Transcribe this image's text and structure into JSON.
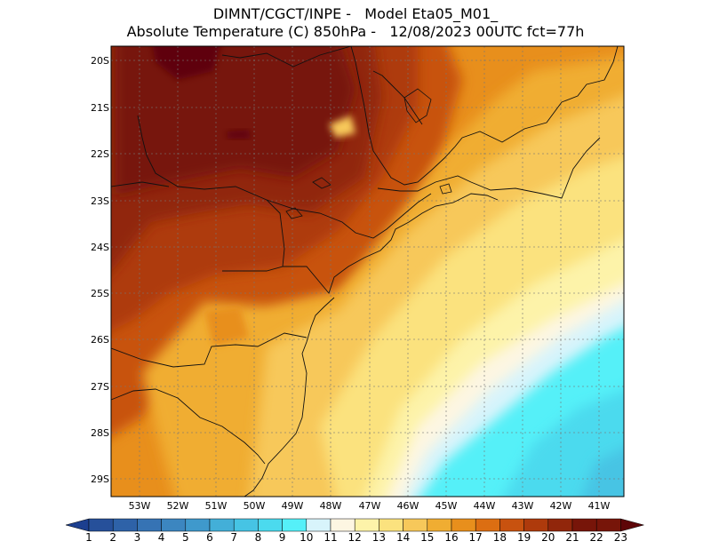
{
  "header": {
    "line1": "DIMNT/CGCT/INPE -   Model Eta05_M01_",
    "line2": "Absolute Temperature (C) 850hPa -   12/08/2023 00UTC fct=77h"
  },
  "map": {
    "lat_labels": [
      "20S",
      "21S",
      "22S",
      "23S",
      "24S",
      "25S",
      "26S",
      "27S",
      "28S",
      "29S"
    ],
    "lon_labels": [
      "53W",
      "52W",
      "51W",
      "50W",
      "49W",
      "48W",
      "47W",
      "46W",
      "45W",
      "44W",
      "43W",
      "42W",
      "41W"
    ]
  },
  "colorbar": {
    "labels": [
      "1",
      "2",
      "3",
      "4",
      "5",
      "6",
      "7",
      "8",
      "9",
      "10",
      "11",
      "12",
      "13",
      "14",
      "15",
      "16",
      "17",
      "18",
      "19",
      "20",
      "21",
      "22",
      "23"
    ],
    "colors": [
      "#1c3f8f",
      "#26509a",
      "#2e62a8",
      "#3673b4",
      "#3c86c0",
      "#3f99cc",
      "#43afd8",
      "#46c4e4",
      "#4bdaee",
      "#55f0f8",
      "#d8f4fb",
      "#fdf6e2",
      "#fdf3a9",
      "#fbe27e",
      "#f7c85a",
      "#f0ad32",
      "#e88f1c",
      "#dc6e12",
      "#c8520f",
      "#ae3a0c",
      "#91260b",
      "#771509",
      "#5e0508"
    ]
  }
}
